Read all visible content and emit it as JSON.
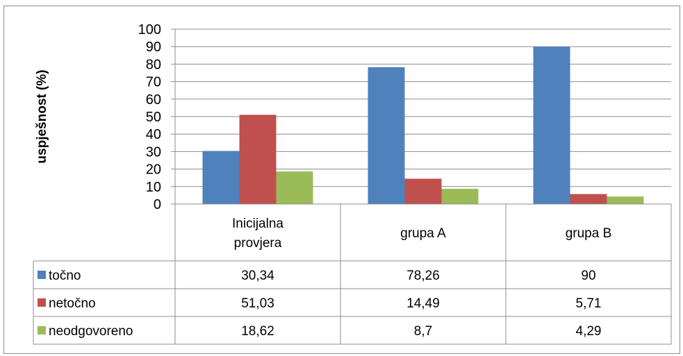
{
  "chart_data": {
    "type": "bar",
    "ylabel": "uspješnost (%)",
    "ylim": [
      0,
      100
    ],
    "yticks": [
      0,
      10,
      20,
      30,
      40,
      50,
      60,
      70,
      80,
      90,
      100
    ],
    "grid": true,
    "categories": [
      "Inicijalna provjera",
      "grupa A",
      "grupa B"
    ],
    "category_lines": [
      [
        "Inicijalna",
        "provjera"
      ],
      [
        "grupa A"
      ],
      [
        "grupa B"
      ]
    ],
    "series": [
      {
        "name": "točno",
        "color": "#4f81bd",
        "values": [
          30.34,
          78.26,
          90
        ],
        "labels": [
          "30,34",
          "78,26",
          "90"
        ]
      },
      {
        "name": "netočno",
        "color": "#c0504d",
        "values": [
          51.03,
          14.49,
          5.71
        ],
        "labels": [
          "51,03",
          "14,49",
          "5,71"
        ]
      },
      {
        "name": "neodgovoreno",
        "color": "#9bbb59",
        "values": [
          18.62,
          8.7,
          4.29
        ],
        "labels": [
          "18,62",
          "8,7",
          "4,29"
        ]
      }
    ],
    "data_table": true
  }
}
